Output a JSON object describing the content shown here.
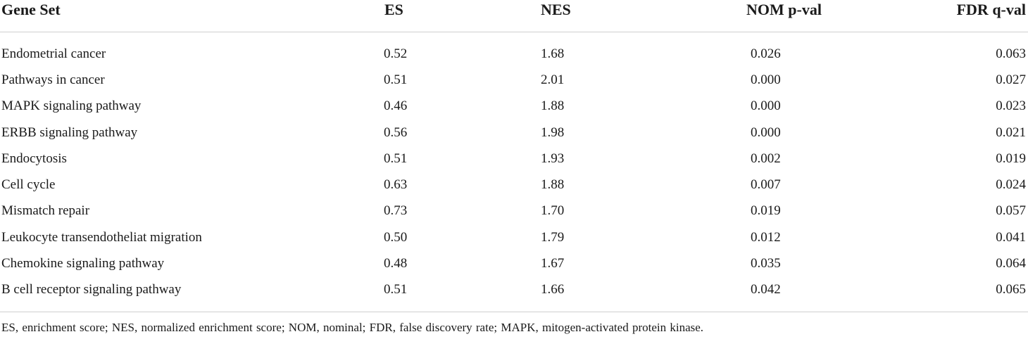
{
  "table": {
    "headers": [
      "Gene Set",
      "ES",
      "NES",
      "NOM p-val",
      "FDR q-val"
    ],
    "rows": [
      [
        "Endometrial cancer",
        "0.52",
        "1.68",
        "0.026",
        "0.063"
      ],
      [
        "Pathways in cancer",
        "0.51",
        "2.01",
        "0.000",
        "0.027"
      ],
      [
        "MAPK signaling pathway",
        "0.46",
        "1.88",
        "0.000",
        "0.023"
      ],
      [
        "ERBB signaling pathway",
        "0.56",
        "1.98",
        "0.000",
        "0.021"
      ],
      [
        "Endocytosis",
        "0.51",
        "1.93",
        "0.002",
        "0.019"
      ],
      [
        "Cell cycle",
        "0.63",
        "1.88",
        "0.007",
        "0.024"
      ],
      [
        "Mismatch repair",
        "0.73",
        "1.70",
        "0.019",
        "0.057"
      ],
      [
        "Leukocyte transendotheliat migration",
        "0.50",
        "1.79",
        "0.012",
        "0.041"
      ],
      [
        "Chemokine signaling pathway",
        "0.48",
        "1.67",
        "0.035",
        "0.064"
      ],
      [
        "B cell receptor signaling pathway",
        "0.51",
        "1.66",
        "0.042",
        "0.065"
      ]
    ]
  },
  "footnote": "ES, enrichment score; NES, normalized enrichment score; NOM, nominal; FDR, false discovery rate; MAPK, mitogen-activated protein kinase."
}
